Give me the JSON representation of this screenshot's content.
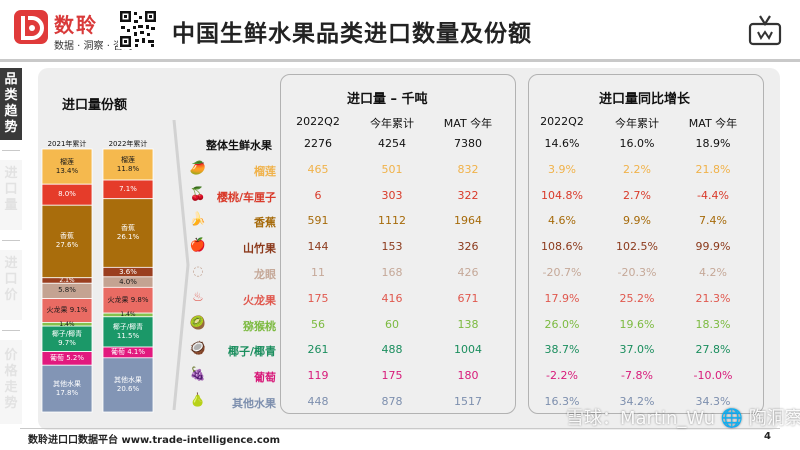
{
  "brand": {
    "name": "数聆",
    "tagline": "数据 · 洞察 · 咨询"
  },
  "page_title": "中国生鲜水果品类进口数量及份额",
  "side_nav": [
    "品类趋势",
    "进口量",
    "进口价",
    "价格走势"
  ],
  "share_title": "进口量份额",
  "volume_header": "进口量 – 千吨",
  "growth_header": "进口量同比增长",
  "columns": [
    "2022Q2",
    "今年累计",
    "MAT 今年"
  ],
  "footer": "数聆进口口数据平台 www.trade-intelligence.com",
  "page_number": "4",
  "watermark": "雪球：Martin_Wu   🌐 陶洞察",
  "colors": {
    "durian": "#f5b94e",
    "cherry": "#e53c2a",
    "banana": "#a96d0c",
    "mangosteen": "#9a3e1f",
    "longan": "#c4a392",
    "dragonfruit": "#e96b63",
    "kiwi": "#86c14d",
    "coconut": "#1b9868",
    "grape": "#e2197e",
    "other": "#8295b5"
  },
  "rows": [
    {
      "name": "整体生鲜水果",
      "icon": "",
      "color": "#111111",
      "vol": [
        "2276",
        "4254",
        "7380"
      ],
      "growth": [
        "14.6%",
        "16.0%",
        "18.9%"
      ],
      "gcolor": "#111111"
    },
    {
      "name": "榴莲",
      "icon": "🥭",
      "color": "#f0b24a",
      "vol": [
        "465",
        "501",
        "832"
      ],
      "growth": [
        "3.9%",
        "2.2%",
        "21.8%"
      ],
      "gcolor": "#f0b24a"
    },
    {
      "name": "樱桃/车厘子",
      "icon": "🍒",
      "color": "#d93a2a",
      "vol": [
        "6",
        "303",
        "322"
      ],
      "growth": [
        "104.8%",
        "2.7%",
        "-4.4%"
      ],
      "gcolor": "#d93a2a"
    },
    {
      "name": "香蕉",
      "icon": "🍌",
      "color": "#a66a0a",
      "vol": [
        "591",
        "1112",
        "1964"
      ],
      "growth": [
        "4.6%",
        "9.9%",
        "7.4%"
      ],
      "gcolor": "#a66a0a"
    },
    {
      "name": "山竹果",
      "icon": "🍎",
      "color": "#8c3a1c",
      "vol": [
        "144",
        "153",
        "326"
      ],
      "growth": [
        "108.6%",
        "102.5%",
        "99.9%"
      ],
      "gcolor": "#8c3a1c"
    },
    {
      "name": "龙眼",
      "icon": "◌",
      "color": "#c5a898",
      "vol": [
        "11",
        "168",
        "426"
      ],
      "growth": [
        "-20.7%",
        "-20.3%",
        "4.2%"
      ],
      "gcolor": "#c5a898"
    },
    {
      "name": "火龙果",
      "icon": "♨",
      "color": "#e0584e",
      "vol": [
        "175",
        "416",
        "671"
      ],
      "growth": [
        "17.9%",
        "25.2%",
        "21.3%"
      ],
      "gcolor": "#e0584e"
    },
    {
      "name": "猕猴桃",
      "icon": "🥝",
      "color": "#7cba40",
      "vol": [
        "56",
        "60",
        "138"
      ],
      "growth": [
        "26.0%",
        "19.6%",
        "18.3%"
      ],
      "gcolor": "#7cba40"
    },
    {
      "name": "椰子/椰青",
      "icon": "🥥",
      "color": "#1b8e5e",
      "vol": [
        "261",
        "488",
        "1004"
      ],
      "growth": [
        "38.7%",
        "37.0%",
        "27.8%"
      ],
      "gcolor": "#1b8e5e"
    },
    {
      "name": "葡萄",
      "icon": "🍇",
      "color": "#d81b7a",
      "vol": [
        "119",
        "175",
        "180"
      ],
      "growth": [
        "-2.2%",
        "-7.8%",
        "-10.0%"
      ],
      "gcolor": "#d81b7a"
    },
    {
      "name": "其他水果",
      "icon": "🍐",
      "color": "#7d8fae",
      "vol": [
        "448",
        "878",
        "1517"
      ],
      "growth": [
        "16.3%",
        "34.2%",
        "34.3%"
      ],
      "gcolor": "#7d8fae"
    }
  ],
  "chart_data": {
    "type": "bar",
    "stacked": true,
    "title": "进口量份额",
    "categories": [
      "2021年累计",
      "2022年累计"
    ],
    "series": [
      {
        "name": "榴莲",
        "key": "durian",
        "values": [
          13.4,
          11.8
        ],
        "labels": [
          "榴莲\n13.4%",
          "榴莲\n11.8%"
        ]
      },
      {
        "name": "樱桃/车厘子",
        "key": "cherry",
        "values": [
          8.0,
          7.1
        ],
        "labels": [
          "8.0%",
          "7.1%"
        ]
      },
      {
        "name": "香蕉",
        "key": "banana",
        "values": [
          27.6,
          26.1
        ],
        "labels": [
          "香蕉\n27.6%",
          "香蕉\n26.1%"
        ]
      },
      {
        "name": "山竹果",
        "key": "mangosteen",
        "values": [
          2.1,
          3.6
        ],
        "labels": [
          "2.1%",
          "3.6%"
        ]
      },
      {
        "name": "龙眼",
        "key": "longan",
        "values": [
          5.8,
          4.0
        ],
        "labels": [
          "5.8%",
          "4.0%"
        ]
      },
      {
        "name": "火龙果",
        "key": "dragonfruit",
        "values": [
          9.1,
          9.8
        ],
        "labels": [
          "火龙果 9.1%",
          "火龙果 9.8%"
        ]
      },
      {
        "name": "猕猴桃",
        "key": "kiwi",
        "values": [
          1.4,
          1.4
        ],
        "labels": [
          "1.4%",
          "1.4%"
        ]
      },
      {
        "name": "椰子/椰青",
        "key": "coconut",
        "values": [
          9.7,
          11.5
        ],
        "labels": [
          "椰子/椰青\n9.7%",
          "椰子/椰青\n11.5%"
        ]
      },
      {
        "name": "葡萄",
        "key": "grape",
        "values": [
          5.2,
          4.1
        ],
        "labels": [
          "葡萄 5.2%",
          "葡萄 4.1%"
        ]
      },
      {
        "name": "其他水果",
        "key": "other",
        "values": [
          17.8,
          20.6
        ],
        "labels": [
          "其他水果\n17.8%",
          "其他水果\n20.6%"
        ]
      }
    ]
  }
}
